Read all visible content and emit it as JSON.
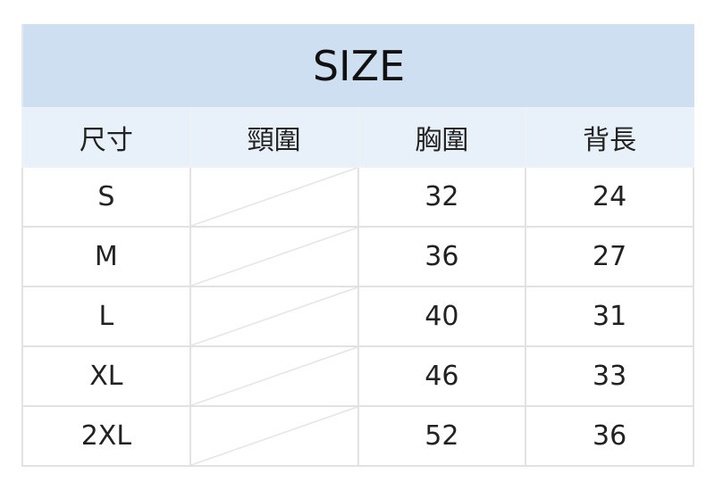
{
  "title": "SIZE",
  "headers": [
    "尺寸",
    "頸圍",
    "胸圍",
    "背長"
  ],
  "rows": [
    {
      "size": "S",
      "neck": "",
      "chest": "32",
      "back": "24"
    },
    {
      "size": "M",
      "neck": "",
      "chest": "36",
      "back": "27"
    },
    {
      "size": "L",
      "neck": "",
      "chest": "40",
      "back": "31"
    },
    {
      "size": "XL",
      "neck": "",
      "chest": "46",
      "back": "33"
    },
    {
      "size": "2XL",
      "neck": "",
      "chest": "52",
      "back": "36"
    }
  ],
  "colors": {
    "title_bg": "#cddff1",
    "header_bg": "#e8f1fa"
  }
}
